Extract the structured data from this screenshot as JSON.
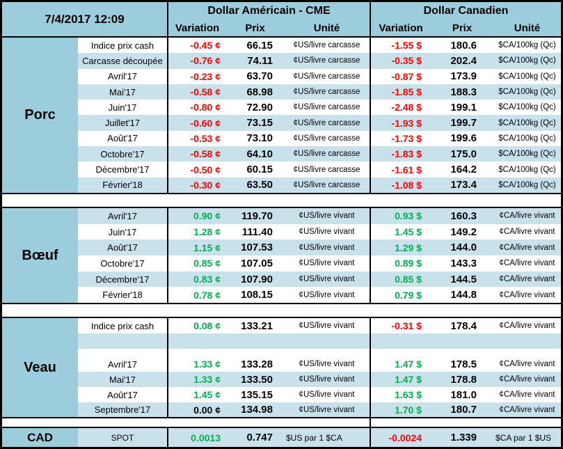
{
  "header": {
    "datetime": "7/4/2017 12:09",
    "us_title": "Dollar Américain - CME",
    "ca_title": "Dollar Canadien",
    "col_variation": "Variation",
    "col_prix": "Prix",
    "col_unite": "Unité"
  },
  "colors": {
    "red": "#FF0000",
    "green": "#00B050",
    "header_blue": "#9CCDDC",
    "stripe_blue": "#C9E1EB"
  },
  "sections": [
    {
      "label": "Porc",
      "rows": [
        {
          "label": "Indice prix cash",
          "shade": "white",
          "us_var": "-0.45 ¢",
          "us_c": "red",
          "us_prix": "66.15",
          "us_unit": "¢US/livre carcasse",
          "ca_var": "-1.55 $",
          "ca_c": "red",
          "ca_prix": "180.6",
          "ca_unit": "$CA/100kg (Qc)"
        },
        {
          "label": "Carcasse découpée",
          "shade": "blue",
          "us_var": "-0.76 ¢",
          "us_c": "red",
          "us_prix": "74.11",
          "us_unit": "¢US/livre carcasse",
          "ca_var": "-0.35 $",
          "ca_c": "red",
          "ca_prix": "202.4",
          "ca_unit": "$CA/100kg (Qc)"
        },
        {
          "label": "Avril'17",
          "shade": "white",
          "us_var": "-0.23 ¢",
          "us_c": "red",
          "us_prix": "63.70",
          "us_unit": "¢US/livre carcasse",
          "ca_var": "-0.87 $",
          "ca_c": "red",
          "ca_prix": "173.9",
          "ca_unit": "$CA/100kg (Qc)"
        },
        {
          "label": "Mai'17",
          "shade": "blue",
          "us_var": "-0.58 ¢",
          "us_c": "red",
          "us_prix": "68.98",
          "us_unit": "¢US/livre carcasse",
          "ca_var": "-1.85 $",
          "ca_c": "red",
          "ca_prix": "188.3",
          "ca_unit": "$CA/100kg (Qc)"
        },
        {
          "label": "Juin'17",
          "shade": "white",
          "us_var": "-0.80 ¢",
          "us_c": "red",
          "us_prix": "72.90",
          "us_unit": "¢US/livre carcasse",
          "ca_var": "-2.48 $",
          "ca_c": "red",
          "ca_prix": "199.1",
          "ca_unit": "$CA/100kg (Qc)"
        },
        {
          "label": "Juillet'17",
          "shade": "blue",
          "us_var": "-0.60 ¢",
          "us_c": "red",
          "us_prix": "73.15",
          "us_unit": "¢US/livre carcasse",
          "ca_var": "-1.93 $",
          "ca_c": "red",
          "ca_prix": "199.7",
          "ca_unit": "$CA/100kg (Qc)"
        },
        {
          "label": "Août'17",
          "shade": "white",
          "us_var": "-0.53 ¢",
          "us_c": "red",
          "us_prix": "73.10",
          "us_unit": "¢US/livre carcasse",
          "ca_var": "-1.73 $",
          "ca_c": "red",
          "ca_prix": "199.6",
          "ca_unit": "$CA/100kg (Qc)"
        },
        {
          "label": "Octobre'17",
          "shade": "blue",
          "us_var": "-0.58 ¢",
          "us_c": "red",
          "us_prix": "64.10",
          "us_unit": "¢US/livre carcasse",
          "ca_var": "-1.83 $",
          "ca_c": "red",
          "ca_prix": "175.0",
          "ca_unit": "$CA/100kg (Qc)"
        },
        {
          "label": "Décembre'17",
          "shade": "white",
          "us_var": "-0.50 ¢",
          "us_c": "red",
          "us_prix": "60.15",
          "us_unit": "¢US/livre carcasse",
          "ca_var": "-1.61 $",
          "ca_c": "red",
          "ca_prix": "164.2",
          "ca_unit": "$CA/100kg (Qc)"
        },
        {
          "label": "Février'18",
          "shade": "blue",
          "us_var": "-0.30 ¢",
          "us_c": "red",
          "us_prix": "63.50",
          "us_unit": "¢US/livre carcasse",
          "ca_var": "-1.08 $",
          "ca_c": "red",
          "ca_prix": "173.4",
          "ca_unit": "$CA/100kg (Qc)"
        }
      ]
    },
    {
      "label": "Bœuf",
      "rows": [
        {
          "label": "Avril'17",
          "shade": "blue",
          "us_var": "0.90 ¢",
          "us_c": "green",
          "us_prix": "119.70",
          "us_unit": "¢US/livre vivant",
          "ca_var": "0.93 $",
          "ca_c": "green",
          "ca_prix": "160.3",
          "ca_unit": "¢CA/livre vivant"
        },
        {
          "label": "Juin'17",
          "shade": "white",
          "us_var": "1.28 ¢",
          "us_c": "green",
          "us_prix": "111.40",
          "us_unit": "¢US/livre vivant",
          "ca_var": "1.45 $",
          "ca_c": "green",
          "ca_prix": "149.2",
          "ca_unit": "¢CA/livre vivant"
        },
        {
          "label": "Août'17",
          "shade": "blue",
          "us_var": "1.15 ¢",
          "us_c": "green",
          "us_prix": "107.53",
          "us_unit": "¢US/livre vivant",
          "ca_var": "1.29 $",
          "ca_c": "green",
          "ca_prix": "144.0",
          "ca_unit": "¢CA/livre vivant"
        },
        {
          "label": "Octobre'17",
          "shade": "white",
          "us_var": "0.85 ¢",
          "us_c": "green",
          "us_prix": "107.05",
          "us_unit": "¢US/livre vivant",
          "ca_var": "0.89 $",
          "ca_c": "green",
          "ca_prix": "143.3",
          "ca_unit": "¢CA/livre vivant"
        },
        {
          "label": "Décembre'17",
          "shade": "blue",
          "us_var": "0.83 ¢",
          "us_c": "green",
          "us_prix": "107.90",
          "us_unit": "¢US/livre vivant",
          "ca_var": "0.85 $",
          "ca_c": "green",
          "ca_prix": "144.5",
          "ca_unit": "¢CA/livre vivant"
        },
        {
          "label": "Février'18",
          "shade": "white",
          "us_var": "0.78 ¢",
          "us_c": "green",
          "us_prix": "108.15",
          "us_unit": "¢US/livre vivant",
          "ca_var": "0.79 $",
          "ca_c": "green",
          "ca_prix": "144.8",
          "ca_unit": "¢CA/livre vivant"
        }
      ]
    },
    {
      "label": "Veau",
      "rows": [
        {
          "label": "Indice prix cash",
          "shade": "white",
          "us_var": "0.08 ¢",
          "us_c": "green",
          "us_prix": "133.21",
          "us_unit": "¢US/livre vivant",
          "ca_var": "-0.31 $",
          "ca_c": "red",
          "ca_prix": "178.4",
          "ca_unit": "¢CA/livre vivant"
        },
        {
          "label": "",
          "shade": "blue"
        },
        {
          "label": "",
          "shade": "white",
          "h": 11
        },
        {
          "label": "Avril'17",
          "shade": "white",
          "us_var": "1.33 ¢",
          "us_c": "green",
          "us_prix": "133.28",
          "us_unit": "¢US/livre vivant",
          "ca_var": "1.47 $",
          "ca_c": "green",
          "ca_prix": "178.5",
          "ca_unit": "¢CA/livre vivant"
        },
        {
          "label": "Mai'17",
          "shade": "blue",
          "us_var": "1.33 ¢",
          "us_c": "green",
          "us_prix": "133.50",
          "us_unit": "¢US/livre vivant",
          "ca_var": "1.47 $",
          "ca_c": "green",
          "ca_prix": "178.8",
          "ca_unit": "¢CA/livre vivant"
        },
        {
          "label": "Août'17",
          "shade": "white",
          "us_var": "1.45 ¢",
          "us_c": "green",
          "us_prix": "135.15",
          "us_unit": "¢US/livre vivant",
          "ca_var": "1.63 $",
          "ca_c": "green",
          "ca_prix": "181.0",
          "ca_unit": "¢CA/livre vivant"
        },
        {
          "label": "Septembre'17",
          "shade": "blue",
          "h": 21,
          "us_var": "0.00 ¢",
          "us_c": "black",
          "us_prix": "134.98",
          "us_unit": "¢US/livre vivant",
          "ca_var": "1.70 $",
          "ca_c": "green",
          "ca_prix": "180.7",
          "ca_unit": "¢CA/livre vivant"
        }
      ]
    }
  ],
  "cad_row": {
    "label": "CAD",
    "sublabel": "SPOT",
    "us_var": "0.0013",
    "us_c": "green",
    "us_prix": "0.747",
    "us_unit": "$US par 1 $CA",
    "ca_var": "-0.0024",
    "ca_c": "red",
    "ca_prix": "1.339",
    "ca_unit": "$CA par 1 $US"
  }
}
